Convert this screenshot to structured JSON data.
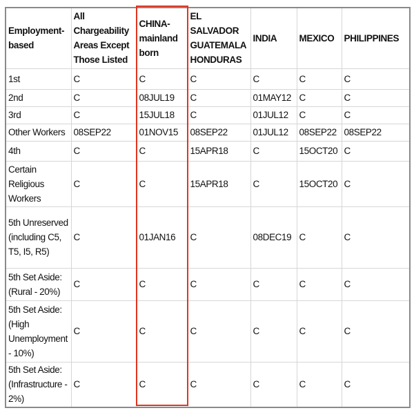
{
  "table": {
    "headers": [
      "Employment-based",
      "All Chargeability Areas Except Those Listed",
      "CHINA-mainland born",
      "EL SALVADOR GUATEMALA HONDURAS",
      "INDIA",
      "MEXICO",
      "PHILIPPINES"
    ],
    "rows": [
      [
        "1st",
        "C",
        "C",
        "C",
        "C",
        "C",
        "C"
      ],
      [
        "2nd",
        "C",
        "08JUL19",
        "C",
        "01MAY12",
        "C",
        "C"
      ],
      [
        "3rd",
        "C",
        "15JUL18",
        "C",
        "01JUL12",
        "C",
        "C"
      ],
      [
        "Other Workers",
        "08SEP22",
        "01NOV15",
        "08SEP22",
        "01JUL12",
        "08SEP22",
        "08SEP22"
      ],
      [
        "4th",
        "C",
        "C",
        "15APR18",
        "C",
        "15OCT20",
        "C"
      ],
      [
        "Certain Religious Workers",
        "C",
        "C",
        "15APR18",
        "C",
        "15OCT20",
        "C"
      ],
      [
        "5th Unreserved (including C5, T5, I5, R5)",
        "C",
        "01JAN16",
        "C",
        "08DEC19",
        "C",
        "C"
      ],
      [
        "5th Set Aside: (Rural - 20%)",
        "C",
        "C",
        "C",
        "C",
        "C",
        "C"
      ],
      [
        "5th Set Aside: (High Unemployment - 10%)",
        "C",
        "C",
        "C",
        "C",
        "C",
        "C"
      ],
      [
        "5th Set Aside: (Infrastructure - 2%)",
        "C",
        "C",
        "C",
        "C",
        "C",
        "C"
      ]
    ],
    "highlight_color": "#e0341f"
  }
}
